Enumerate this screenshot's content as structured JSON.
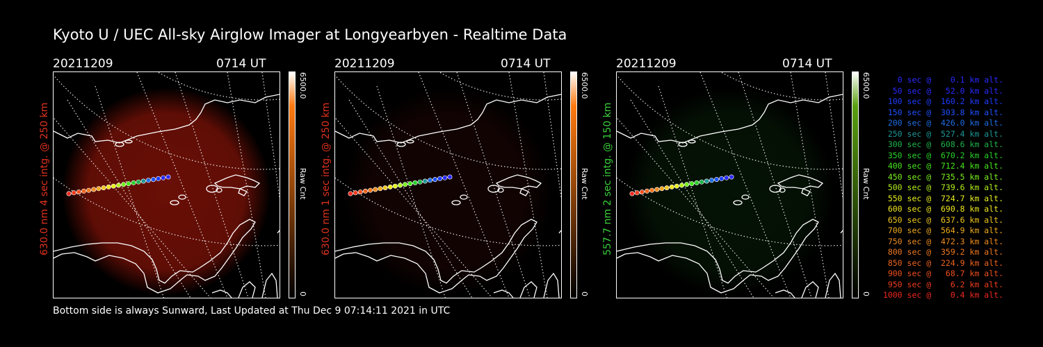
{
  "page": {
    "title": "Kyoto U / UEC All-sky Airglow Imager at Longyearbyen - Realtime Data",
    "footer": "Bottom side is always Sunward, Last Updated at Thu Dec  9 07:14:11 2021 in UTC"
  },
  "panels": [
    {
      "date": "20211209",
      "time": "0714 UT",
      "side_label": "630.0 nm 4 sec intg. @ 250 km",
      "label_color": "#e0321e",
      "colorbar": {
        "max": "6500.0",
        "min": "0",
        "unit": "Raw Cnt",
        "color_low": "#000000",
        "color_high": "#ff7a10"
      },
      "airglow_color": "#8c1408",
      "airglow_level": 0.75
    },
    {
      "date": "20211209",
      "time": "0714 UT",
      "side_label": "630.0 nm 1 sec intg. @ 250 km",
      "label_color": "#e0321e",
      "colorbar": {
        "max": "6500.0",
        "min": "0",
        "unit": "Raw Cnt",
        "color_low": "#000000",
        "color_high": "#ff7a10"
      },
      "airglow_color": "#3a0a06",
      "airglow_level": 0.3
    },
    {
      "date": "20211209",
      "time": "0714 UT",
      "side_label": "557.7 nm 2 sec intg. @ 150 km",
      "label_color": "#3ad23a",
      "colorbar": {
        "max": "6500.0",
        "min": "0",
        "unit": "Raw Cnt",
        "color_low": "#000000",
        "color_high": "#5aa010"
      },
      "airglow_color": "#0f3c10",
      "airglow_level": 0.3
    }
  ],
  "legend": [
    {
      "text": "0 sec @    0.1 km alt.",
      "color": "#2a2aff"
    },
    {
      "text": "50 sec @   52.0 km alt.",
      "color": "#2a2aff"
    },
    {
      "text": "100 sec @  160.2 km alt.",
      "color": "#1e3cff"
    },
    {
      "text": "150 sec @  303.8 km alt.",
      "color": "#1e50ff"
    },
    {
      "text": "200 sec @  426.0 km alt.",
      "color": "#1e6ee6"
    },
    {
      "text": "250 sec @  527.4 km alt.",
      "color": "#1e9696"
    },
    {
      "text": "300 sec @  608.6 km alt.",
      "color": "#1eb44a"
    },
    {
      "text": "350 sec @  670.2 km alt.",
      "color": "#2ad22a"
    },
    {
      "text": "400 sec @  712.4 km alt.",
      "color": "#46e61e"
    },
    {
      "text": "450 sec @  735.5 km alt.",
      "color": "#7af01e"
    },
    {
      "text": "500 sec @  739.6 km alt.",
      "color": "#b4f01e"
    },
    {
      "text": "550 sec @  724.7 km alt.",
      "color": "#e6f01e"
    },
    {
      "text": "600 sec @  690.8 km alt.",
      "color": "#f0e61e"
    },
    {
      "text": "650 sec @  637.6 km alt.",
      "color": "#f0c81e"
    },
    {
      "text": "700 sec @  564.9 km alt.",
      "color": "#f0aa1e"
    },
    {
      "text": "750 sec @  472.3 km alt.",
      "color": "#f08c1e"
    },
    {
      "text": "800 sec @  359.2 km alt.",
      "color": "#f0781e"
    },
    {
      "text": "850 sec @  224.9 km alt.",
      "color": "#f0641e"
    },
    {
      "text": "900 sec @   68.7 km alt.",
      "color": "#f0501e"
    },
    {
      "text": "950 sec @    6.2 km alt.",
      "color": "#f03c1e"
    },
    {
      "text": "1000 sec @    0.4 km alt.",
      "color": "#f0281e"
    }
  ]
}
